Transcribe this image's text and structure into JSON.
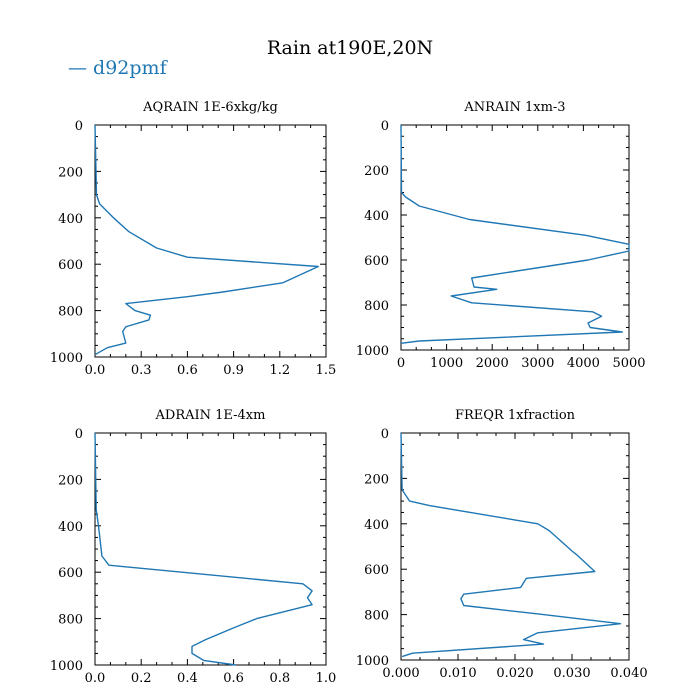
{
  "title": "Rain at190E,20N",
  "legend": {
    "label": "d92pmf",
    "color": "#1f77b4"
  },
  "chart_data": [
    {
      "type": "line",
      "title": "AQRAIN  1E-6xkg/kg",
      "xlim": [
        0,
        1.5
      ],
      "ylim": [
        1000,
        0
      ],
      "xticks": [
        "0.0",
        "0.3",
        "0.6",
        "0.9",
        "1.2",
        "1.5"
      ],
      "yticks": [
        "0",
        "200",
        "400",
        "600",
        "800",
        "1000"
      ],
      "series": [
        {
          "name": "d92pmf",
          "x": [
            0,
            0.01,
            0.03,
            0.12,
            0.22,
            0.4,
            0.6,
            1.45,
            1.22,
            0.83,
            0.6,
            0.2,
            0.26,
            0.36,
            0.35,
            0.2,
            0.18,
            0.2,
            0.08,
            0.0
          ],
          "y": [
            0,
            300,
            340,
            400,
            460,
            530,
            570,
            610,
            680,
            720,
            740,
            770,
            800,
            820,
            840,
            870,
            890,
            940,
            960,
            990
          ]
        }
      ]
    },
    {
      "type": "line",
      "title": "ANRAIN  1xm-3",
      "xlim": [
        0,
        5000
      ],
      "ylim": [
        1000,
        0
      ],
      "xticks": [
        "0",
        "1000",
        "2000",
        "3000",
        "4000",
        "5000"
      ],
      "yticks": [
        "0",
        "200",
        "400",
        "600",
        "800",
        "1000"
      ],
      "series": [
        {
          "name": "d92pmf",
          "x": [
            0,
            10,
            100,
            400,
            1500,
            4050,
            5000,
            5000,
            4100,
            1550,
            1600,
            2100,
            1100,
            1550,
            4200,
            4400,
            4100,
            4150,
            4850,
            400,
            0
          ],
          "y": [
            0,
            300,
            320,
            360,
            420,
            490,
            530,
            560,
            600,
            680,
            720,
            730,
            760,
            790,
            830,
            850,
            880,
            900,
            920,
            960,
            970
          ]
        }
      ]
    },
    {
      "type": "line",
      "title": "ADRAIN  1E-4xm",
      "xlim": [
        0,
        1.0
      ],
      "ylim": [
        1000,
        0
      ],
      "xticks": [
        "0.0",
        "0.2",
        "0.4",
        "0.6",
        "0.8",
        "1.0"
      ],
      "yticks": [
        "0",
        "200",
        "400",
        "600",
        "800",
        "1000"
      ],
      "series": [
        {
          "name": "d92pmf",
          "x": [
            0,
            0.005,
            0.015,
            0.03,
            0.06,
            0.9,
            0.94,
            0.92,
            0.94,
            0.7,
            0.6,
            0.48,
            0.42,
            0.42,
            0.47,
            0.61
          ],
          "y": [
            0,
            330,
            400,
            530,
            570,
            650,
            680,
            710,
            740,
            800,
            840,
            890,
            920,
            950,
            980,
            1000
          ]
        }
      ]
    },
    {
      "type": "line",
      "title": "FREQR  1xfraction",
      "xlim": [
        0,
        0.04
      ],
      "ylim": [
        1000,
        0
      ],
      "xticks": [
        "0.000",
        "0.010",
        "0.020",
        "0.030",
        "0.040"
      ],
      "yticks": [
        "0",
        "200",
        "400",
        "600",
        "800",
        "1000"
      ],
      "series": [
        {
          "name": "d92pmf",
          "x": [
            0,
            0.0002,
            0.0015,
            0.005,
            0.024,
            0.026,
            0.03,
            0.031,
            0.034,
            0.022,
            0.021,
            0.011,
            0.0105,
            0.011,
            0.025,
            0.0385,
            0.024,
            0.0215,
            0.025,
            0.002,
            0.0002
          ],
          "y": [
            0,
            250,
            300,
            320,
            400,
            430,
            520,
            540,
            610,
            640,
            680,
            710,
            730,
            760,
            800,
            840,
            880,
            910,
            930,
            970,
            985
          ]
        }
      ]
    }
  ]
}
